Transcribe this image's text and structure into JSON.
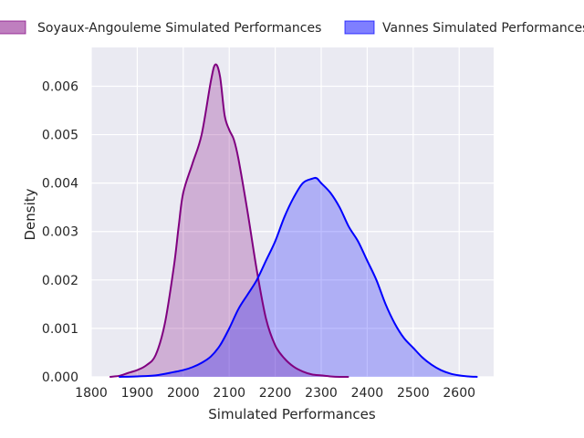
{
  "chart_data": {
    "type": "area",
    "title": "",
    "xlabel": "Simulated Performances",
    "ylabel": "Density",
    "xlim": [
      1800,
      2675
    ],
    "ylim": [
      0,
      0.0068
    ],
    "xticks": [
      1800,
      1900,
      2000,
      2100,
      2200,
      2300,
      2400,
      2500,
      2600
    ],
    "yticks": [
      0.0,
      0.001,
      0.002,
      0.003,
      0.004,
      0.005,
      0.006
    ],
    "ytick_labels": [
      "0.000",
      "0.001",
      "0.002",
      "0.003",
      "0.004",
      "0.005",
      "0.006"
    ],
    "grid": true,
    "legend": "top (above plot, 2 columns)",
    "series": [
      {
        "name": "Soyaux-Angouleme Simulated Performances",
        "color": "#800080",
        "x": [
          1840,
          1860,
          1880,
          1900,
          1920,
          1940,
          1960,
          1980,
          1990,
          2000,
          2020,
          2040,
          2060,
          2070,
          2080,
          2090,
          2100,
          2110,
          2120,
          2140,
          2160,
          2180,
          2200,
          2220,
          2240,
          2260,
          2280,
          2300,
          2320,
          2340,
          2360
        ],
        "y": [
          0.0,
          2e-05,
          8e-05,
          0.00014,
          0.00024,
          0.00045,
          0.0011,
          0.0023,
          0.0031,
          0.0038,
          0.0044,
          0.005,
          0.0061,
          0.00645,
          0.0062,
          0.0054,
          0.0051,
          0.0049,
          0.0045,
          0.0034,
          0.0022,
          0.0012,
          0.00065,
          0.00038,
          0.00021,
          0.00011,
          5e-05,
          3e-05,
          1e-05,
          0.0,
          0.0
        ]
      },
      {
        "name": "Vannes Simulated Performances",
        "color": "#0000ff",
        "x": [
          1860,
          1900,
          1940,
          1980,
          2000,
          2020,
          2040,
          2060,
          2080,
          2100,
          2120,
          2140,
          2160,
          2180,
          2200,
          2220,
          2240,
          2260,
          2280,
          2290,
          2300,
          2320,
          2340,
          2360,
          2380,
          2400,
          2420,
          2440,
          2460,
          2480,
          2500,
          2520,
          2540,
          2560,
          2580,
          2600,
          2620,
          2640
        ],
        "y": [
          0.0,
          1e-05,
          3e-05,
          0.0001,
          0.00014,
          0.0002,
          0.00029,
          0.00042,
          0.00065,
          0.001,
          0.0014,
          0.0017,
          0.002,
          0.0024,
          0.0028,
          0.0033,
          0.0037,
          0.004,
          0.00409,
          0.0041,
          0.004,
          0.0038,
          0.0035,
          0.0031,
          0.0028,
          0.0024,
          0.002,
          0.0015,
          0.0011,
          0.0008,
          0.0006,
          0.0004,
          0.00025,
          0.00014,
          7e-05,
          3e-05,
          1e-05,
          0.0
        ]
      }
    ]
  }
}
